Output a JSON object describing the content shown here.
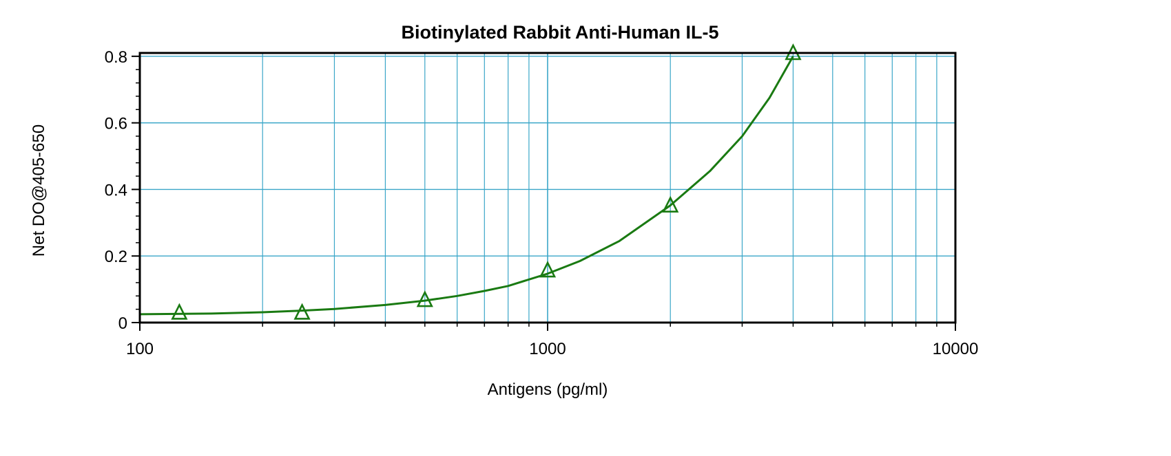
{
  "chart_data": {
    "type": "line",
    "title": "Biotinylated Rabbit Anti-Human IL-5",
    "xlabel": "Antigens (pg/ml)",
    "ylabel": "Net DO@405-650",
    "x_scale": "log",
    "xlim": [
      100,
      10000
    ],
    "ylim": [
      0,
      0.81
    ],
    "x_ticks": [
      100,
      1000,
      10000
    ],
    "x_tick_labels": [
      "100",
      "1000",
      "10000"
    ],
    "y_ticks": [
      0,
      0.2,
      0.4,
      0.6,
      0.8
    ],
    "y_tick_labels": [
      "0",
      "0.2",
      "0.4",
      "0.6",
      "0.8"
    ],
    "grid": true,
    "colors": {
      "grid": "#3aa6c8",
      "series": "#1a7a12",
      "axis": "#000000"
    },
    "series": [
      {
        "marker": "triangle",
        "points": [
          {
            "x": 125,
            "y": 0.03
          },
          {
            "x": 250,
            "y": 0.03
          },
          {
            "x": 500,
            "y": 0.068
          },
          {
            "x": 1000,
            "y": 0.157
          },
          {
            "x": 2000,
            "y": 0.352
          },
          {
            "x": 4000,
            "y": 0.81
          }
        ],
        "curve": [
          {
            "x": 100,
            "y": 0.025
          },
          {
            "x": 150,
            "y": 0.027
          },
          {
            "x": 200,
            "y": 0.031
          },
          {
            "x": 250,
            "y": 0.036
          },
          {
            "x": 300,
            "y": 0.041
          },
          {
            "x": 400,
            "y": 0.053
          },
          {
            "x": 500,
            "y": 0.066
          },
          {
            "x": 600,
            "y": 0.08
          },
          {
            "x": 700,
            "y": 0.095
          },
          {
            "x": 800,
            "y": 0.11
          },
          {
            "x": 1000,
            "y": 0.147
          },
          {
            "x": 1200,
            "y": 0.185
          },
          {
            "x": 1500,
            "y": 0.245
          },
          {
            "x": 2000,
            "y": 0.352
          },
          {
            "x": 2500,
            "y": 0.455
          },
          {
            "x": 3000,
            "y": 0.56
          },
          {
            "x": 3500,
            "y": 0.675
          },
          {
            "x": 4000,
            "y": 0.8
          }
        ]
      }
    ]
  }
}
